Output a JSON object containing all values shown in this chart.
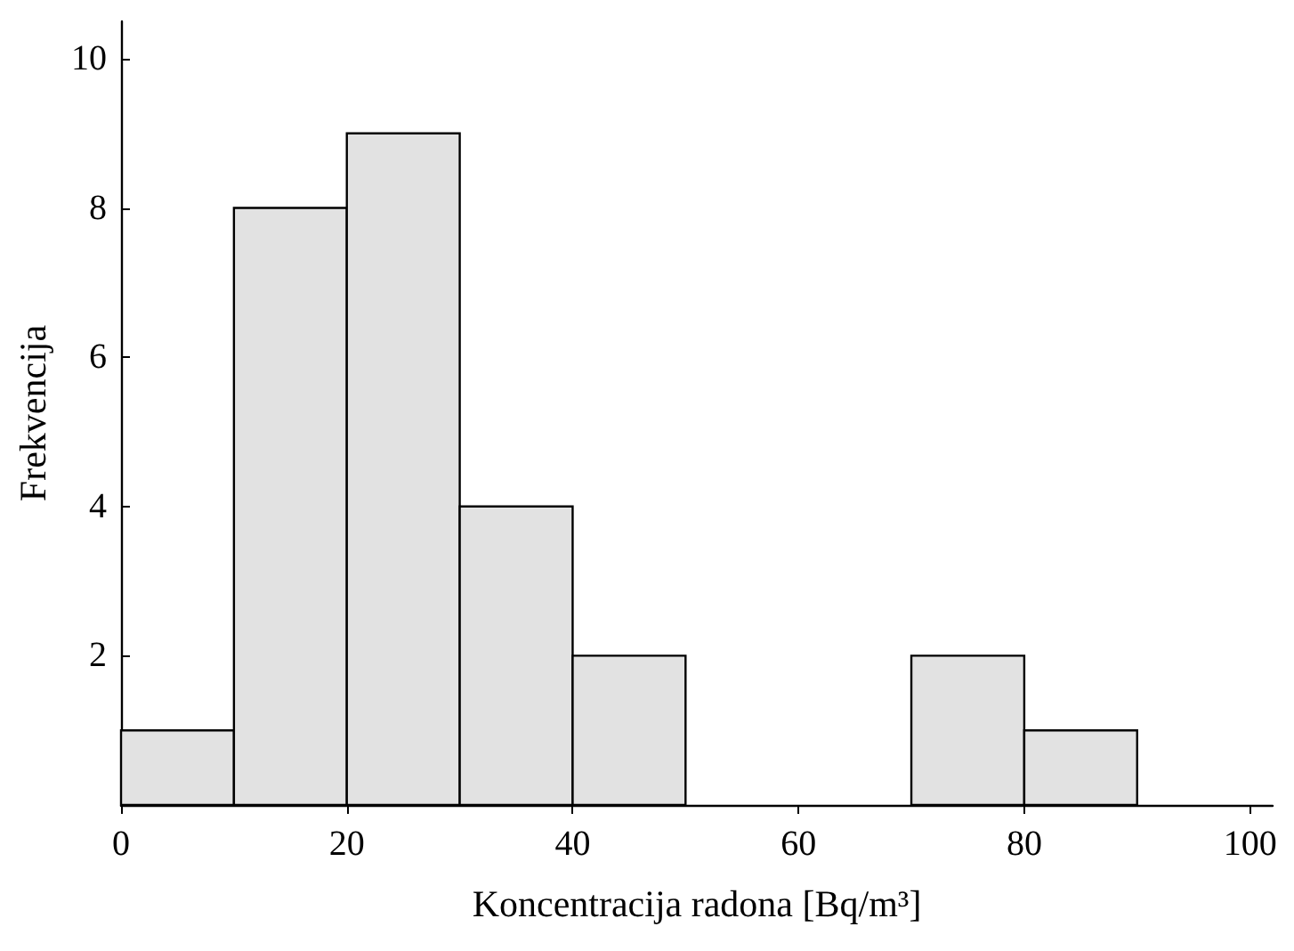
{
  "chart_data": {
    "type": "histogram",
    "xlabel": "Koncentracija radona [Bq/m³]",
    "ylabel": "Frekvencija",
    "bins": [
      0,
      10,
      20,
      30,
      40,
      50,
      60,
      70,
      80,
      90
    ],
    "values": [
      1,
      8,
      9,
      4,
      2,
      0,
      0,
      2,
      1
    ],
    "color": "#e2e2e2",
    "xlim": [
      0,
      102
    ],
    "xticks": [
      0,
      20,
      40,
      60,
      80,
      100
    ],
    "ylim": [
      0,
      10.5
    ],
    "yticks": [
      {
        "value": 0,
        "label": null
      },
      2,
      4,
      6,
      8,
      10
    ],
    "grid": false
  }
}
